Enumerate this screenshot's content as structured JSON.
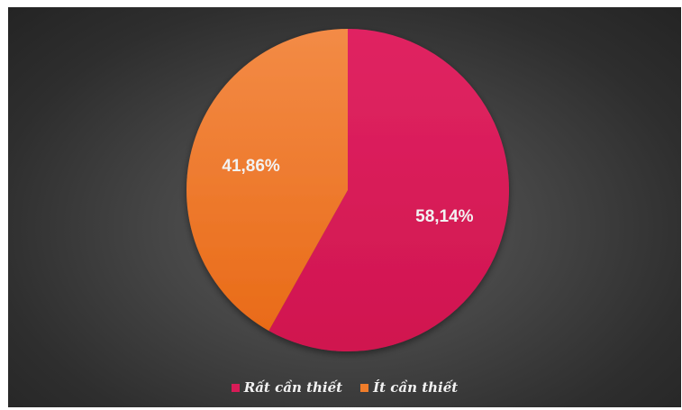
{
  "chart_data": {
    "type": "pie",
    "title": "",
    "categories": [
      "Rất cần thiết",
      "Ít cần thiết"
    ],
    "values": [
      58.14,
      41.86
    ],
    "labels": [
      "58,14%",
      "41,86%"
    ],
    "colors": [
      "#d81b57",
      "#f07d2a"
    ],
    "legend_position": "bottom",
    "start_angle": "top, clockwise"
  }
}
